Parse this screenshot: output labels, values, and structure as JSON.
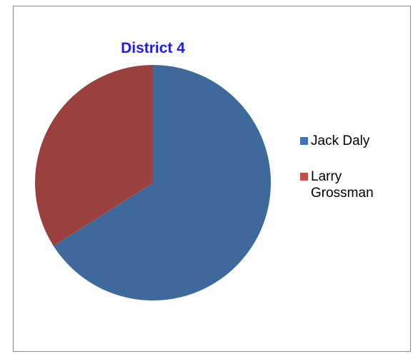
{
  "chart_data": {
    "type": "pie",
    "title": "District 4",
    "categories": [
      "Jack Daly",
      "Larry Grossman"
    ],
    "values": [
      66,
      34
    ],
    "colors": [
      "#3f699b",
      "#9c403e"
    ],
    "legend_colors": [
      "#4472b4",
      "#c0504d"
    ],
    "legend_position": "right"
  }
}
